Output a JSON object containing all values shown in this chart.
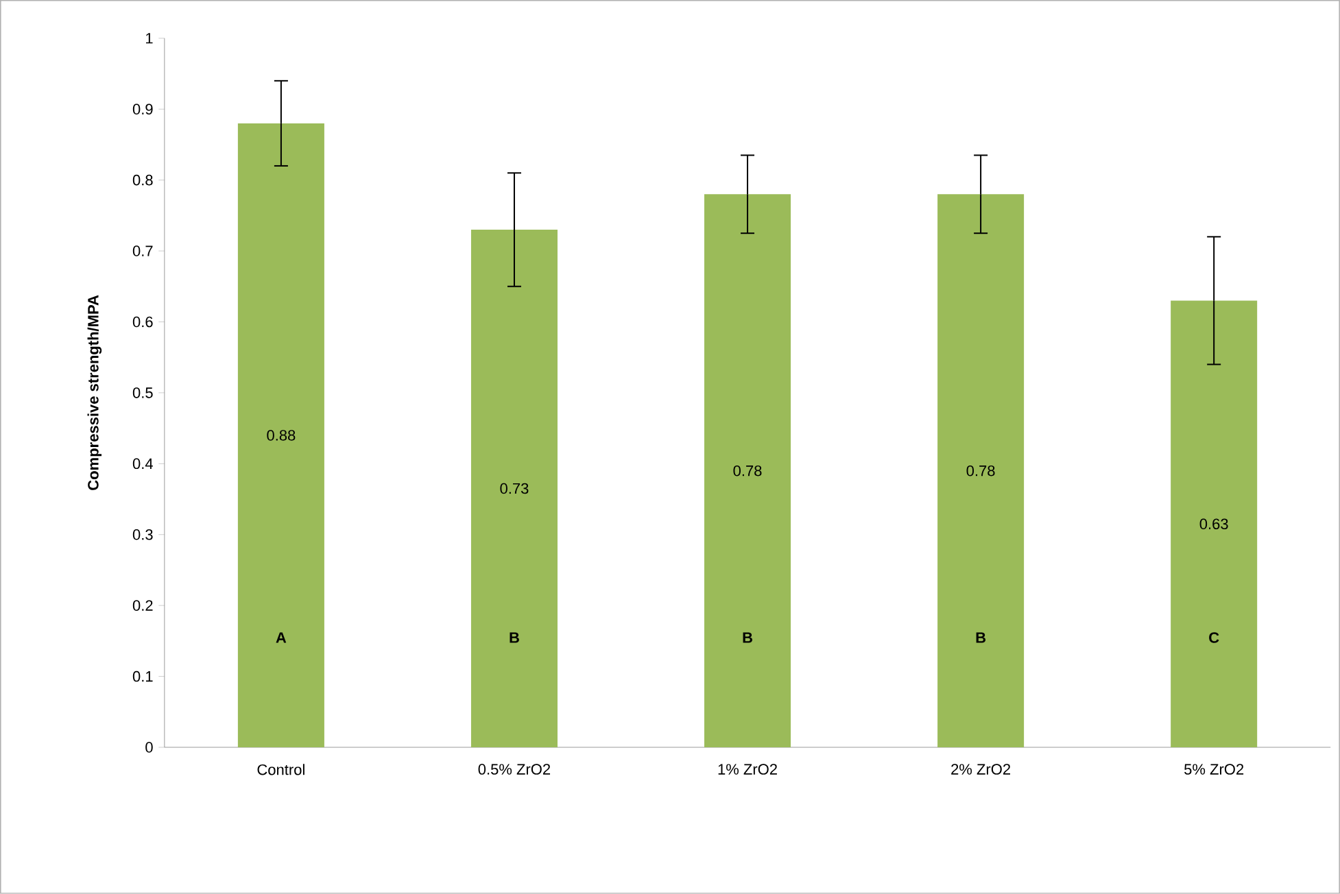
{
  "chart_data": {
    "type": "bar",
    "ylabel": "Compressive strength/MPA",
    "categories": [
      "Control",
      "0.5% ZrO2",
      "1% ZrO2",
      "2% ZrO2",
      "5% ZrO2"
    ],
    "values": [
      0.88,
      0.73,
      0.78,
      0.78,
      0.63
    ],
    "value_labels": [
      "0.88",
      "0.73",
      "0.78",
      "0.78",
      "0.63"
    ],
    "errors": [
      0.06,
      0.08,
      0.055,
      0.055,
      0.09
    ],
    "color": "#9bbb59",
    "ylim": [
      0,
      1
    ],
    "yticks": [
      0,
      0.1,
      0.2,
      0.3,
      0.4,
      0.5,
      0.6,
      0.7,
      0.8,
      0.9,
      1
    ],
    "grid": false,
    "annotations": [
      "A",
      "B",
      "B",
      "B",
      "C"
    ]
  }
}
